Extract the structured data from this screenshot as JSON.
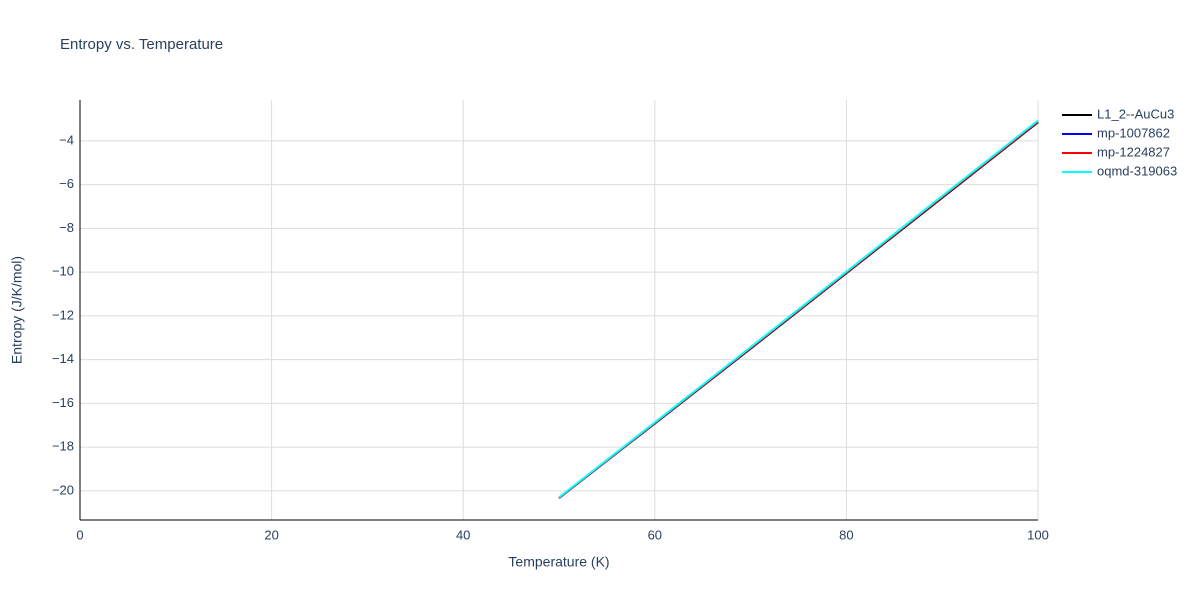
{
  "chart_data": {
    "type": "line",
    "title": "Entropy vs. Temperature",
    "x_label": "Temperature (K)",
    "y_label": "Entropy (J/K/mol)",
    "x": [
      50,
      60,
      70,
      80,
      90,
      100
    ],
    "series": [
      {
        "name": "L1_2--AuCu3",
        "color": "#000000",
        "values": [
          -20.33,
          -16.92,
          -13.5,
          -10.05,
          -6.6,
          -3.15
        ]
      },
      {
        "name": "mp-1007862",
        "color": "#0000ff",
        "values": [
          -20.32,
          -16.9,
          -13.47,
          -10.02,
          -6.57,
          -3.12
        ]
      },
      {
        "name": "mp-1224827",
        "color": "#ff0000",
        "values": [
          -20.32,
          -16.9,
          -13.47,
          -10.02,
          -6.57,
          -3.12
        ]
      },
      {
        "name": "oqmd-319063",
        "color": "#00ffff",
        "values": [
          -20.3,
          -16.87,
          -13.43,
          -9.98,
          -6.52,
          -3.07
        ]
      }
    ],
    "xlim": [
      0,
      100
    ],
    "xticks": [
      0,
      20,
      40,
      60,
      80,
      100
    ],
    "ylim": [
      -21.33,
      -2.13
    ],
    "yticks": [
      {
        "value": -20,
        "label": "−20"
      },
      {
        "value": -18,
        "label": "−18"
      },
      {
        "value": -16,
        "label": "−16"
      },
      {
        "value": -14,
        "label": "−14"
      },
      {
        "value": -12,
        "label": "−12"
      },
      {
        "value": -10,
        "label": "−10"
      },
      {
        "value": -8,
        "label": "−8"
      },
      {
        "value": -6,
        "label": "−6"
      },
      {
        "value": -4,
        "label": "−4"
      }
    ],
    "grid": true
  }
}
